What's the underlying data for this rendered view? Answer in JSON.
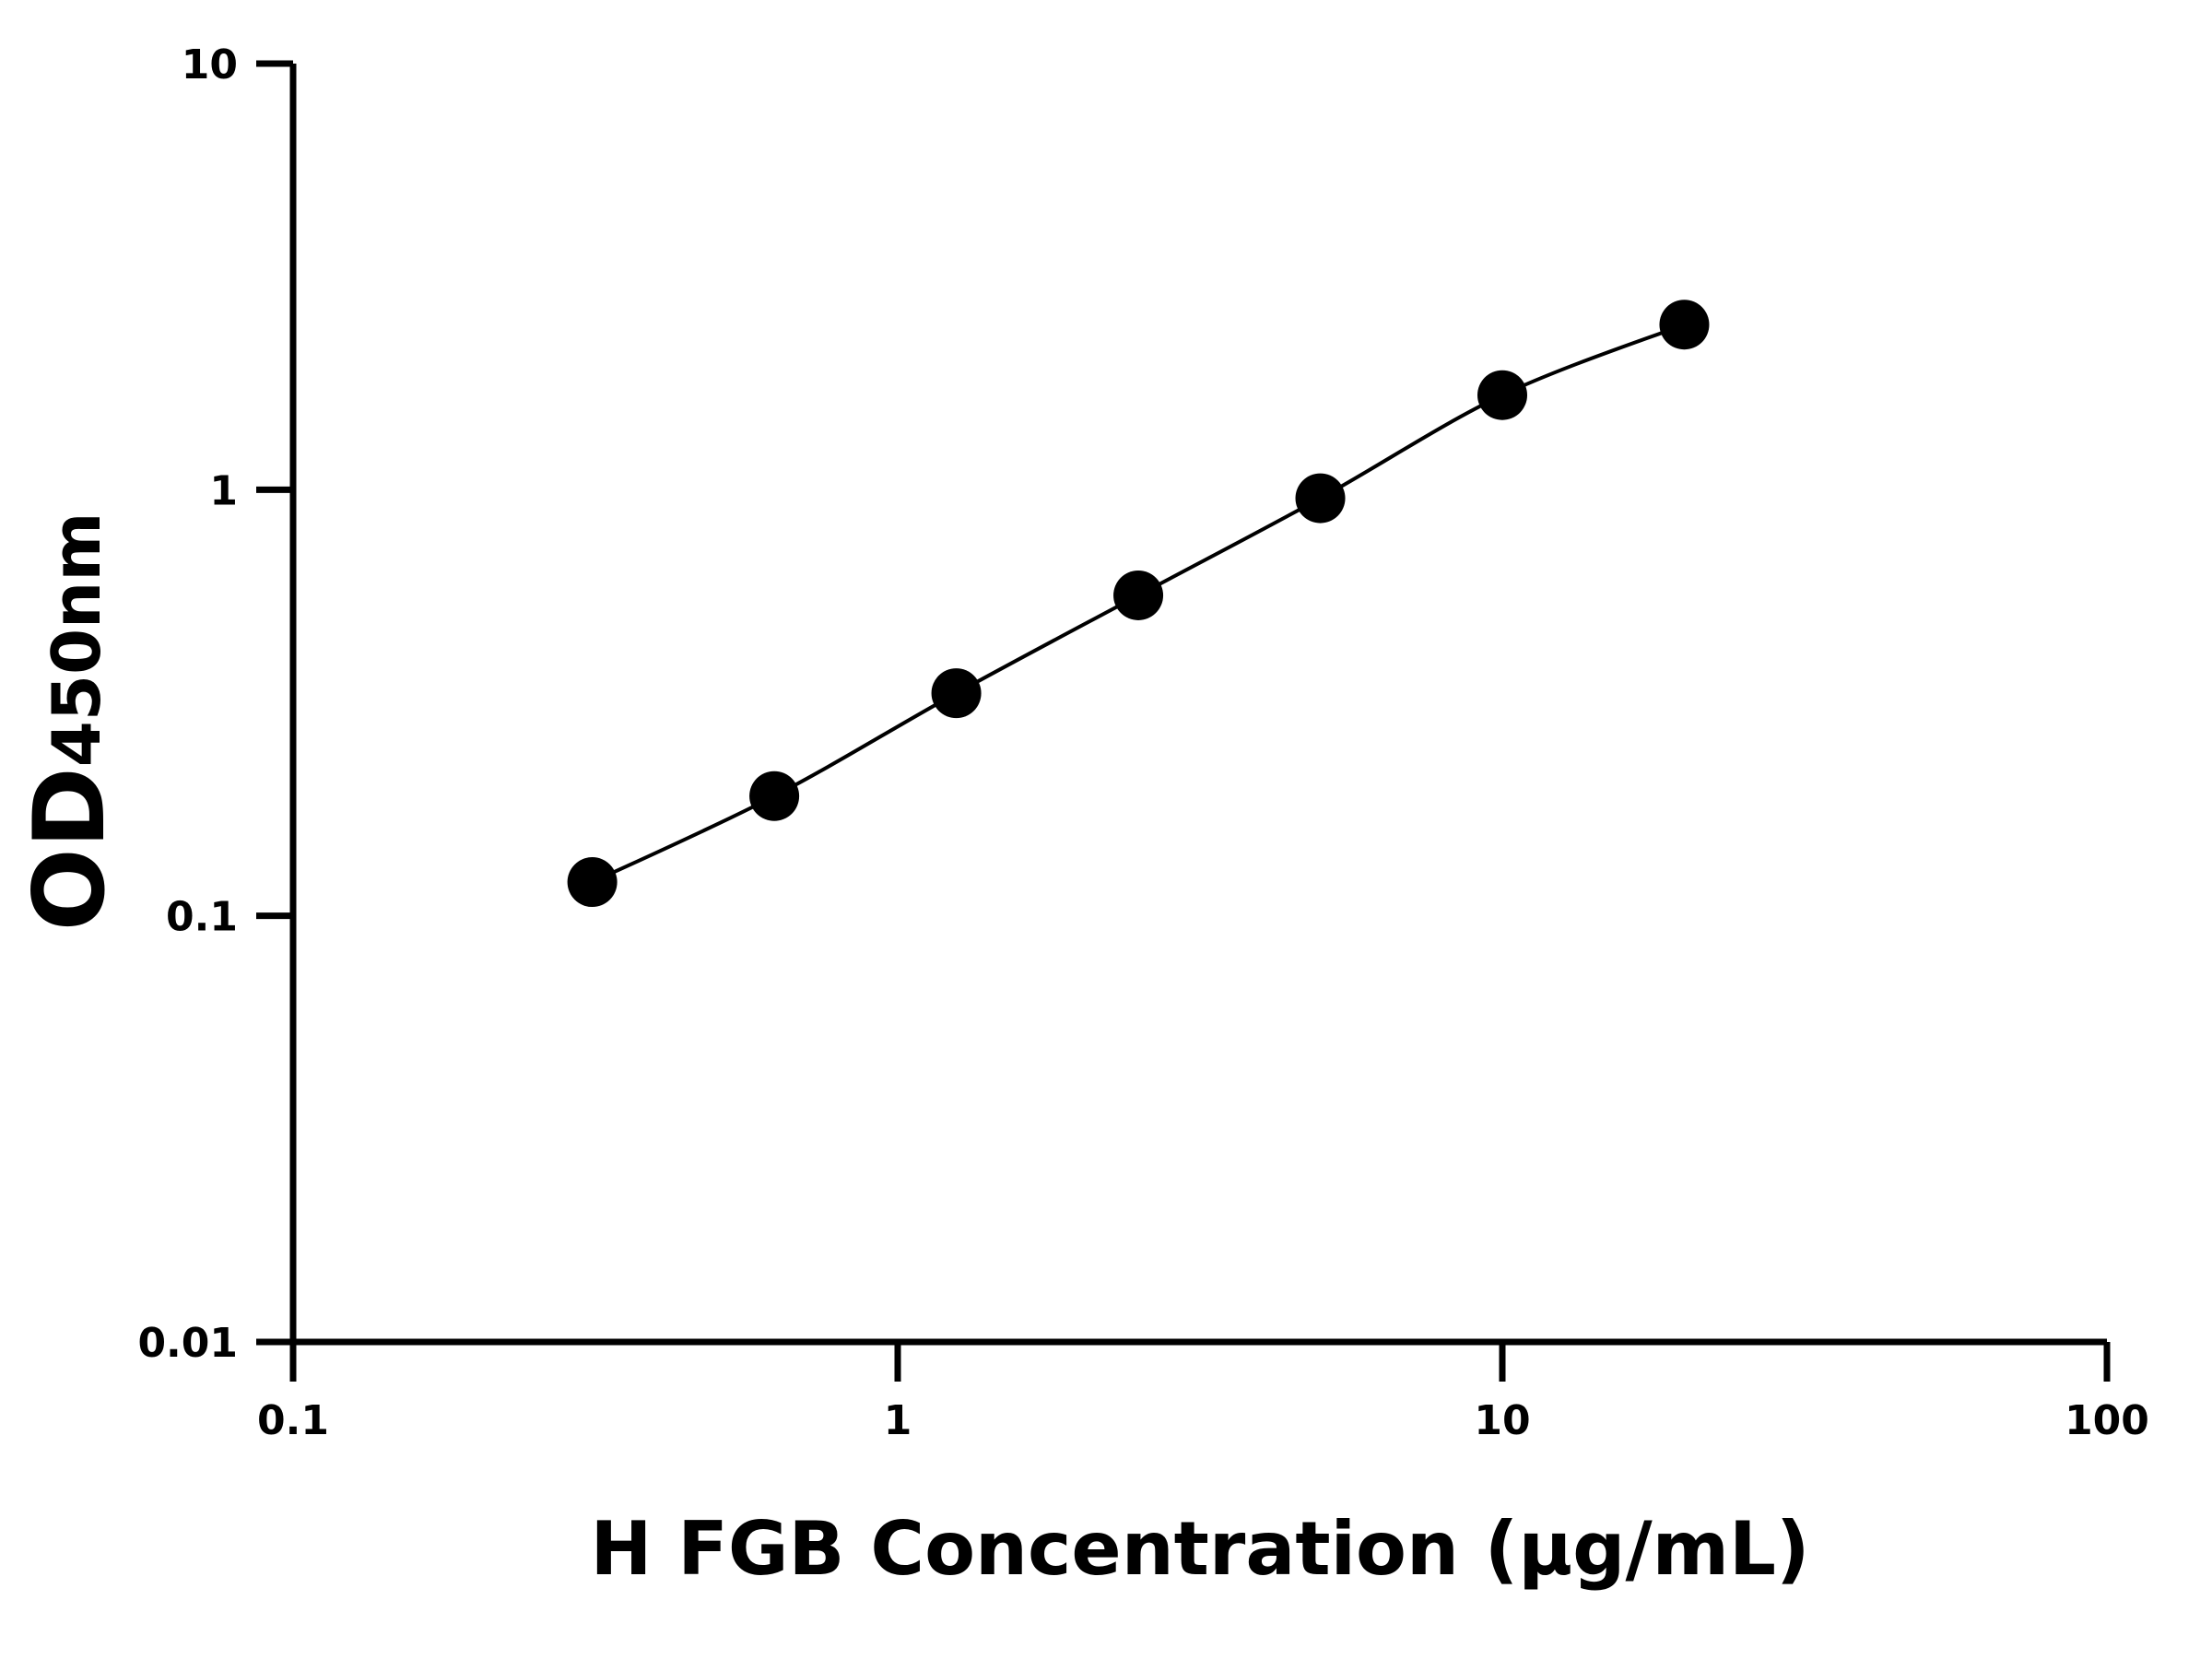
{
  "chart_data": {
    "type": "scatter",
    "x_label": "H FGB Concentration (μg/mL)",
    "y_label": "OD",
    "y_label_sub": "450nm",
    "x": [
      0.3125,
      0.625,
      1.25,
      2.5,
      5,
      10,
      20
    ],
    "values": [
      0.12,
      0.191,
      0.333,
      0.565,
      0.955,
      1.667,
      2.44
    ],
    "color": "#000000",
    "fit_line": true,
    "xscale": "log",
    "yscale": "log",
    "xlim": [
      0.1,
      100
    ],
    "xticks": [
      0.1,
      1,
      10,
      100
    ],
    "ylim": [
      0.01,
      10
    ],
    "yticks": [
      0.01,
      0.1,
      1,
      10
    ],
    "grid": false
  }
}
